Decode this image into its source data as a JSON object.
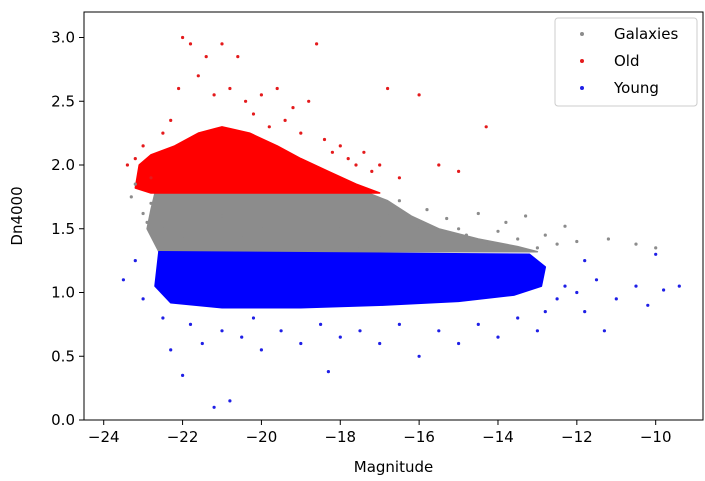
{
  "chart_data": {
    "type": "scatter",
    "title": "",
    "xlabel": "Magnitude",
    "ylabel": "Dn4000",
    "xlim": [
      -24.5,
      -8.8
    ],
    "ylim": [
      0.0,
      3.2
    ],
    "x_ticks": [
      -24,
      -22,
      -20,
      -18,
      -16,
      -14,
      -12,
      -10
    ],
    "x_tick_labels": [
      "−24",
      "−22",
      "−20",
      "−18",
      "−16",
      "−14",
      "−12",
      "−10"
    ],
    "y_ticks": [
      0.0,
      0.5,
      1.0,
      1.5,
      2.0,
      2.5,
      3.0
    ],
    "y_tick_labels": [
      "0.0",
      "0.5",
      "1.0",
      "1.5",
      "2.0",
      "2.5",
      "3.0"
    ],
    "grid": false,
    "legend": "top-right",
    "series": [
      {
        "name": "Galaxies",
        "color": "#8c8c8c",
        "points": [
          [
            -23.3,
            1.75
          ],
          [
            -23.2,
            1.85
          ],
          [
            -23.0,
            1.62
          ],
          [
            -22.9,
            1.55
          ],
          [
            -22.8,
            1.7
          ],
          [
            -22.7,
            1.45
          ],
          [
            -22.6,
            1.35
          ],
          [
            -22.5,
            1.5
          ],
          [
            -22.3,
            1.62
          ],
          [
            -22.0,
            1.42
          ],
          [
            -21.5,
            1.55
          ],
          [
            -21.0,
            1.6
          ],
          [
            -20.5,
            1.45
          ],
          [
            -20.0,
            1.5
          ],
          [
            -19.5,
            1.7
          ],
          [
            -19.0,
            1.4
          ],
          [
            -18.5,
            1.65
          ],
          [
            -18.0,
            1.5
          ],
          [
            -17.5,
            1.35
          ],
          [
            -17.0,
            1.45
          ],
          [
            -16.8,
            1.6
          ],
          [
            -16.5,
            1.72
          ],
          [
            -16.3,
            1.55
          ],
          [
            -16.0,
            1.5
          ],
          [
            -15.8,
            1.65
          ],
          [
            -15.5,
            1.42
          ],
          [
            -15.3,
            1.58
          ],
          [
            -15.0,
            1.5
          ],
          [
            -14.8,
            1.45
          ],
          [
            -14.5,
            1.62
          ],
          [
            -14.3,
            1.38
          ],
          [
            -14.0,
            1.48
          ],
          [
            -13.8,
            1.55
          ],
          [
            -13.5,
            1.42
          ],
          [
            -13.3,
            1.6
          ],
          [
            -13.0,
            1.35
          ],
          [
            -12.8,
            1.45
          ],
          [
            -12.5,
            1.38
          ],
          [
            -12.3,
            1.52
          ],
          [
            -12.0,
            1.4
          ],
          [
            -11.2,
            1.42
          ],
          [
            -10.5,
            1.38
          ],
          [
            -10.0,
            1.35
          ]
        ]
      },
      {
        "name": "Old",
        "color": "#e41a1c",
        "points": [
          [
            -23.4,
            2.0
          ],
          [
            -23.2,
            2.05
          ],
          [
            -23.0,
            2.15
          ],
          [
            -22.8,
            1.9
          ],
          [
            -22.5,
            2.25
          ],
          [
            -22.3,
            2.35
          ],
          [
            -22.1,
            2.6
          ],
          [
            -22.0,
            3.0
          ],
          [
            -21.8,
            2.95
          ],
          [
            -21.6,
            2.7
          ],
          [
            -21.4,
            2.85
          ],
          [
            -21.2,
            2.55
          ],
          [
            -21.0,
            2.95
          ],
          [
            -20.8,
            2.6
          ],
          [
            -20.6,
            2.85
          ],
          [
            -20.4,
            2.5
          ],
          [
            -20.2,
            2.4
          ],
          [
            -20.0,
            2.55
          ],
          [
            -19.8,
            2.3
          ],
          [
            -19.6,
            2.6
          ],
          [
            -19.4,
            2.35
          ],
          [
            -19.2,
            2.45
          ],
          [
            -19.0,
            2.25
          ],
          [
            -18.8,
            2.5
          ],
          [
            -18.6,
            2.95
          ],
          [
            -18.4,
            2.2
          ],
          [
            -18.2,
            2.1
          ],
          [
            -18.0,
            2.15
          ],
          [
            -17.8,
            2.05
          ],
          [
            -17.6,
            2.0
          ],
          [
            -17.4,
            2.1
          ],
          [
            -17.2,
            1.95
          ],
          [
            -17.0,
            2.0
          ],
          [
            -16.8,
            2.6
          ],
          [
            -16.5,
            1.9
          ],
          [
            -16.0,
            2.55
          ],
          [
            -15.5,
            2.0
          ],
          [
            -15.0,
            1.95
          ],
          [
            -14.3,
            2.3
          ]
        ]
      },
      {
        "name": "Young",
        "color": "#1f1fe6",
        "points": [
          [
            -23.5,
            1.1
          ],
          [
            -23.2,
            1.25
          ],
          [
            -23.0,
            0.95
          ],
          [
            -22.5,
            0.8
          ],
          [
            -22.3,
            0.55
          ],
          [
            -22.0,
            0.35
          ],
          [
            -21.8,
            0.75
          ],
          [
            -21.5,
            0.6
          ],
          [
            -21.2,
            0.1
          ],
          [
            -21.0,
            0.7
          ],
          [
            -20.8,
            0.15
          ],
          [
            -20.5,
            0.65
          ],
          [
            -20.2,
            0.8
          ],
          [
            -20.0,
            0.55
          ],
          [
            -19.5,
            0.7
          ],
          [
            -19.0,
            0.6
          ],
          [
            -18.5,
            0.75
          ],
          [
            -18.3,
            0.38
          ],
          [
            -18.0,
            0.65
          ],
          [
            -17.5,
            0.7
          ],
          [
            -17.0,
            0.6
          ],
          [
            -16.5,
            0.75
          ],
          [
            -16.0,
            0.5
          ],
          [
            -15.5,
            0.7
          ],
          [
            -15.0,
            0.6
          ],
          [
            -14.5,
            0.75
          ],
          [
            -14.0,
            0.65
          ],
          [
            -13.5,
            0.8
          ],
          [
            -13.0,
            0.7
          ],
          [
            -12.8,
            0.85
          ],
          [
            -12.5,
            0.95
          ],
          [
            -12.3,
            1.05
          ],
          [
            -12.0,
            1.0
          ],
          [
            -11.8,
            0.85
          ],
          [
            -11.5,
            1.1
          ],
          [
            -11.3,
            0.7
          ],
          [
            -11.0,
            0.95
          ],
          [
            -10.5,
            1.05
          ],
          [
            -10.2,
            0.9
          ],
          [
            -9.8,
            1.02
          ],
          [
            -9.4,
            1.05
          ],
          [
            -10.0,
            1.3
          ],
          [
            -11.8,
            1.25
          ]
        ]
      }
    ],
    "regions": [
      {
        "series": "Galaxies",
        "color": "#8c8c8c",
        "polygon": [
          [
            -22.7,
            1.78
          ],
          [
            -17.3,
            1.78
          ],
          [
            -16.8,
            1.72
          ],
          [
            -16.2,
            1.6
          ],
          [
            -15.5,
            1.5
          ],
          [
            -14.5,
            1.42
          ],
          [
            -13.5,
            1.36
          ],
          [
            -13.0,
            1.32
          ],
          [
            -22.6,
            1.32
          ],
          [
            -22.9,
            1.5
          ],
          [
            -22.8,
            1.65
          ]
        ]
      },
      {
        "series": "Old",
        "color": "#ff0000",
        "polygon": [
          [
            -23.2,
            1.82
          ],
          [
            -23.1,
            2.0
          ],
          [
            -22.8,
            2.08
          ],
          [
            -22.2,
            2.15
          ],
          [
            -21.6,
            2.25
          ],
          [
            -21.0,
            2.3
          ],
          [
            -20.3,
            2.25
          ],
          [
            -19.6,
            2.15
          ],
          [
            -19.0,
            2.05
          ],
          [
            -18.3,
            1.95
          ],
          [
            -17.6,
            1.85
          ],
          [
            -17.0,
            1.78
          ],
          [
            -22.8,
            1.78
          ]
        ]
      },
      {
        "series": "Young",
        "color": "#0000ff",
        "polygon": [
          [
            -22.6,
            1.32
          ],
          [
            -13.2,
            1.3
          ],
          [
            -12.8,
            1.2
          ],
          [
            -12.9,
            1.05
          ],
          [
            -13.6,
            0.98
          ],
          [
            -15.0,
            0.93
          ],
          [
            -17.0,
            0.9
          ],
          [
            -19.0,
            0.88
          ],
          [
            -21.0,
            0.88
          ],
          [
            -22.3,
            0.92
          ],
          [
            -22.7,
            1.05
          ]
        ]
      }
    ]
  }
}
